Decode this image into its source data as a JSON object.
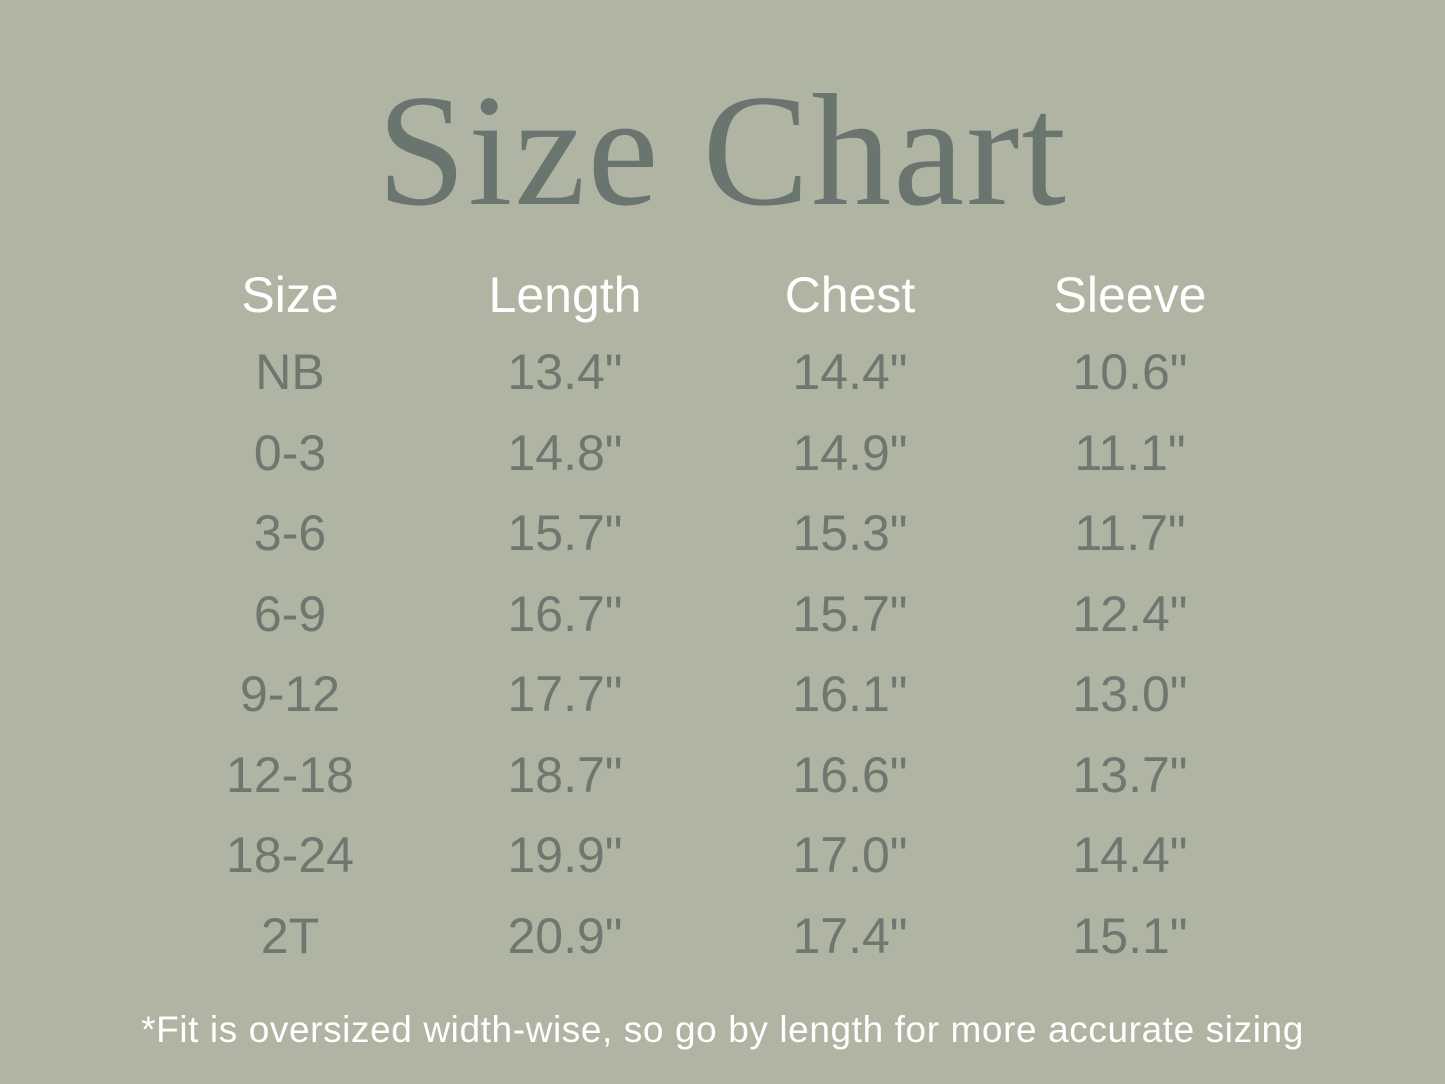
{
  "title": "Size Chart",
  "table": {
    "headers": [
      "Size",
      "Length",
      "Chest",
      "Sleeve"
    ],
    "rows": [
      [
        "NB",
        "13.4\"",
        "14.4\"",
        "10.6\""
      ],
      [
        "0-3",
        "14.8\"",
        "14.9\"",
        "11.1\""
      ],
      [
        "3-6",
        "15.7\"",
        "15.3\"",
        "11.7\""
      ],
      [
        "6-9",
        "16.7\"",
        "15.7\"",
        "12.4\""
      ],
      [
        "9-12",
        "17.7\"",
        "16.1\"",
        "13.0\""
      ],
      [
        "12-18",
        "18.7\"",
        "16.6\"",
        "13.7\""
      ],
      [
        "18-24",
        "19.9\"",
        "17.0\"",
        "14.4\""
      ],
      [
        "2T",
        "20.9\"",
        "17.4\"",
        "15.1\""
      ]
    ]
  },
  "note": "*Fit is oversized width-wise, so go by length for more accurate sizing",
  "colors": {
    "background": "#b0b4a2",
    "title": "#6b756f",
    "header": "#ffffff",
    "values": "#6e7770"
  }
}
